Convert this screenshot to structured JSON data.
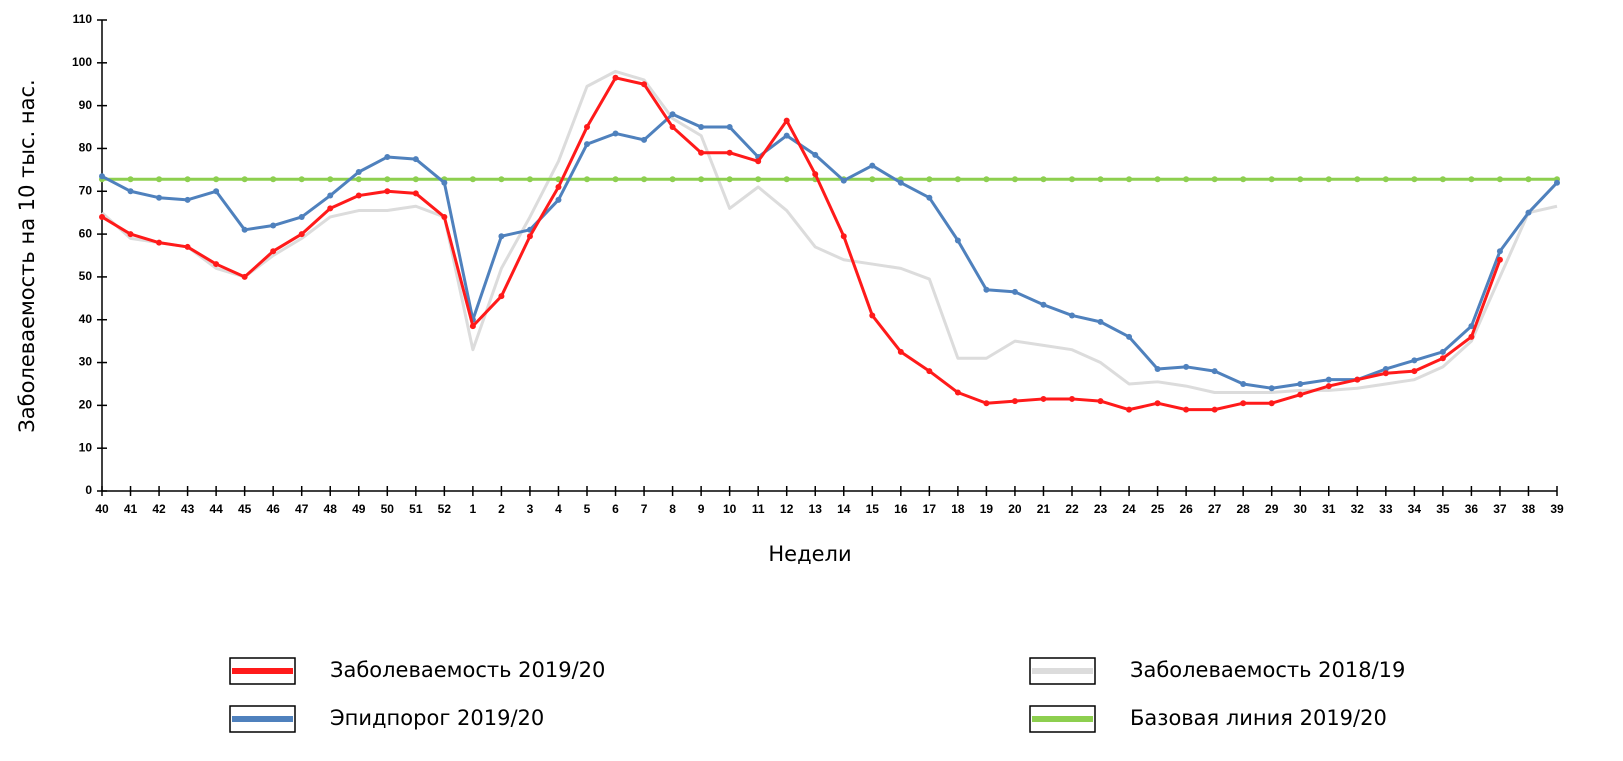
{
  "chart_data": {
    "type": "line",
    "xlabel": "Недели",
    "ylabel": "Заболеваемость на 10 тыс. нас.",
    "categories": [
      "40",
      "41",
      "42",
      "43",
      "44",
      "45",
      "46",
      "47",
      "48",
      "49",
      "50",
      "51",
      "52",
      "1",
      "2",
      "3",
      "4",
      "5",
      "6",
      "7",
      "8",
      "9",
      "10",
      "11",
      "12",
      "13",
      "14",
      "15",
      "16",
      "17",
      "18",
      "19",
      "20",
      "21",
      "22",
      "23",
      "24",
      "25",
      "26",
      "27",
      "28",
      "29",
      "30",
      "31",
      "32",
      "33",
      "34",
      "35",
      "36",
      "37",
      "38",
      "39"
    ],
    "ylim": [
      0,
      110
    ],
    "yticks": [
      0,
      10,
      20,
      30,
      40,
      50,
      60,
      70,
      80,
      90,
      100,
      110
    ],
    "series": [
      {
        "name": "Заболеваемость 2018/19",
        "color": "#dcdcdc",
        "markers": false,
        "values": [
          65,
          59,
          58,
          57,
          52,
          50,
          55,
          59,
          64,
          65.5,
          65.5,
          66.5,
          64,
          33,
          52,
          64,
          77,
          94.5,
          98,
          96,
          87,
          83,
          66,
          71,
          65.5,
          57,
          54,
          53,
          52,
          49.5,
          31,
          31,
          35,
          34,
          33,
          30,
          25,
          25.5,
          24.5,
          23,
          23,
          23,
          23.5,
          23.5,
          24,
          25,
          26,
          29,
          35,
          50,
          65,
          66.5
        ]
      },
      {
        "name": "Базовая линия 2019/20",
        "color": "#8dcf4f",
        "markers": true,
        "values": [
          72.8,
          72.8,
          72.8,
          72.8,
          72.8,
          72.8,
          72.8,
          72.8,
          72.8,
          72.8,
          72.8,
          72.8,
          72.8,
          72.8,
          72.8,
          72.8,
          72.8,
          72.8,
          72.8,
          72.8,
          72.8,
          72.8,
          72.8,
          72.8,
          72.8,
          72.8,
          72.8,
          72.8,
          72.8,
          72.8,
          72.8,
          72.8,
          72.8,
          72.8,
          72.8,
          72.8,
          72.8,
          72.8,
          72.8,
          72.8,
          72.8,
          72.8,
          72.8,
          72.8,
          72.8,
          72.8,
          72.8,
          72.8,
          72.8,
          72.8,
          72.8,
          72.8
        ]
      },
      {
        "name": "Эпидпорог 2019/20",
        "color": "#4f81bd",
        "markers": true,
        "values": [
          73.5,
          70,
          68.5,
          68,
          70,
          61,
          62,
          64,
          69,
          74.5,
          78,
          77.5,
          72,
          40,
          59.5,
          61,
          68,
          81,
          83.5,
          82,
          88,
          85,
          85,
          78,
          83,
          78.5,
          72.5,
          76,
          72,
          68.5,
          58.5,
          47,
          46.5,
          43.5,
          41,
          39.5,
          36,
          28.5,
          29,
          28,
          25,
          24,
          25,
          26,
          26,
          28.5,
          30.5,
          32.5,
          38.5,
          56,
          65,
          72
        ]
      },
      {
        "name": "Заболеваемость 2019/20",
        "color": "#ff1a1a",
        "markers": true,
        "values": [
          64,
          60,
          58,
          57,
          53,
          50,
          56,
          60,
          66,
          69,
          70,
          69.5,
          64,
          38.5,
          45.5,
          59.5,
          71,
          85,
          96.5,
          95,
          85,
          79,
          79,
          77,
          86.5,
          74,
          59.5,
          41,
          32.5,
          28,
          23,
          20.5,
          21,
          21.5,
          21.5,
          21,
          19,
          20.5,
          19,
          19,
          20.5,
          20.5,
          22.5,
          24.5,
          26,
          27.5,
          28,
          31,
          36,
          54,
          null,
          null
        ]
      }
    ],
    "legend_order": [
      3,
      0,
      2,
      1
    ]
  }
}
